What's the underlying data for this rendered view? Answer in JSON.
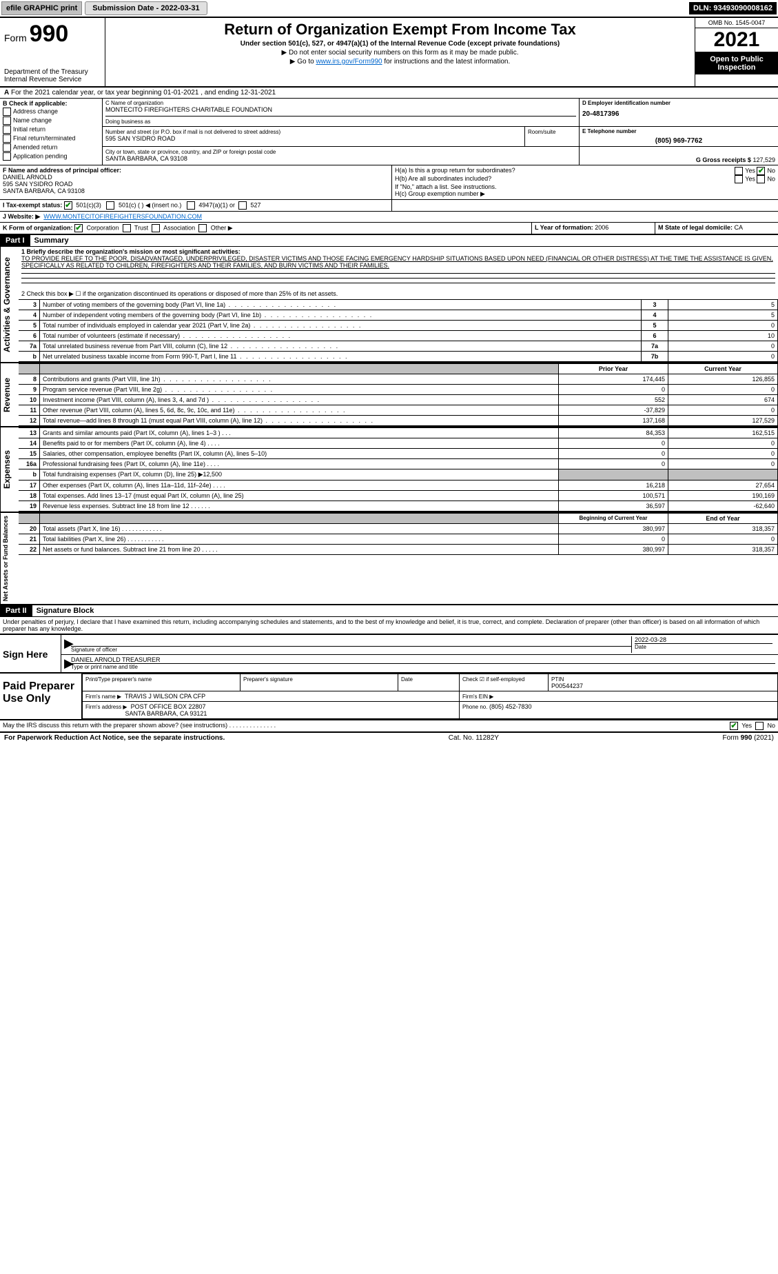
{
  "topbar": {
    "efile": "efile GRAPHIC print",
    "submission_label": "Submission Date - 2022-03-31",
    "dln": "DLN: 93493090008162"
  },
  "header": {
    "form_label": "Form",
    "form_no": "990",
    "dept": "Department of the Treasury",
    "irs": "Internal Revenue Service",
    "title": "Return of Organization Exempt From Income Tax",
    "sub1": "Under section 501(c), 527, or 4947(a)(1) of the Internal Revenue Code (except private foundations)",
    "note1": "▶ Do not enter social security numbers on this form as it may be made public.",
    "note2_pre": "▶ Go to ",
    "note2_link": "www.irs.gov/Form990",
    "note2_post": " for instructions and the latest information.",
    "omb": "OMB No. 1545-0047",
    "year": "2021",
    "open": "Open to Public Inspection"
  },
  "line_a": "For the 2021 calendar year, or tax year beginning 01-01-2021     , and ending 12-31-2021",
  "block_b": {
    "title": "B Check if applicable:",
    "opts": [
      "Address change",
      "Name change",
      "Initial return",
      "Final return/terminated",
      "Amended return",
      "Application pending"
    ]
  },
  "block_c": {
    "name_lbl": "C Name of organization",
    "name": "MONTECITO FIREFIGHTERS CHARITABLE FOUNDATION",
    "dba_lbl": "Doing business as",
    "street_lbl": "Number and street (or P.O. box if mail is not delivered to street address)",
    "room_lbl": "Room/suite",
    "street": "595 SAN YSIDRO ROAD",
    "city_lbl": "City or town, state or province, country, and ZIP or foreign postal code",
    "city": "SANTA BARBARA, CA  93108"
  },
  "block_d": {
    "lbl": "D Employer identification number",
    "val": "20-4817396"
  },
  "block_e": {
    "lbl": "E Telephone number",
    "val": "(805) 969-7762"
  },
  "block_g": {
    "lbl": "G Gross receipts $",
    "val": "127,529"
  },
  "block_f": {
    "lbl": "F  Name and address of principal officer:",
    "name": "DANIEL ARNOLD",
    "street": "595 SAN YSIDRO ROAD",
    "city": "SANTA BARBARA, CA  93108"
  },
  "block_h": {
    "ha": "H(a)  Is this a group return for subordinates?",
    "hb": "H(b)  Are all subordinates included?",
    "hb_note": "If \"No,\" attach a list. See instructions.",
    "hc": "H(c)  Group exemption number ▶",
    "yes": "Yes",
    "no": "No"
  },
  "block_i": {
    "lbl": "I   Tax-exempt status:",
    "o1": "501(c)(3)",
    "o2": "501(c) (   ) ◀ (insert no.)",
    "o3": "4947(a)(1) or",
    "o4": "527"
  },
  "block_j": {
    "lbl": "J   Website: ▶",
    "val": "WWW.MONTECITOFIREFIGHTERSFOUNDATION.COM"
  },
  "block_k": {
    "lbl": "K Form of organization:",
    "o1": "Corporation",
    "o2": "Trust",
    "o3": "Association",
    "o4": "Other ▶"
  },
  "block_l": {
    "lbl": "L Year of formation:",
    "val": "2006"
  },
  "block_m": {
    "lbl": "M State of legal domicile:",
    "val": "CA"
  },
  "part1": {
    "hdr": "Part I",
    "title": "Summary"
  },
  "summary": {
    "line1_lbl": "1  Briefly describe the organization's mission or most significant activities:",
    "line1_txt": "TO PROVIDE RELIEF TO THE POOR, DISADVANTAGED, UNDERPRIVILEGED, DISASTER VICTIMS AND THOSE FACING EMERGENCY HARDSHIP SITUATIONS BASED UPON NEED (FINANCIAL OR OTHER DISTRESS) AT THE TIME THE ASSISTANCE IS GIVEN, SPECIFICALLY AS RELATED TO CHILDREN, FIREFIGHTERS AND THEIR FAMILIES, AND BURN VICTIMS AND THEIR FAMILIES.",
    "line2": "2   Check this box ▶ ☐ if the organization discontinued its operations or disposed of more than 25% of its net assets.",
    "rows_ag": [
      {
        "n": "3",
        "t": "Number of voting members of the governing body (Part VI, line 1a)",
        "box": "3",
        "v": "5"
      },
      {
        "n": "4",
        "t": "Number of independent voting members of the governing body (Part VI, line 1b)",
        "box": "4",
        "v": "5"
      },
      {
        "n": "5",
        "t": "Total number of individuals employed in calendar year 2021 (Part V, line 2a)",
        "box": "5",
        "v": "0"
      },
      {
        "n": "6",
        "t": "Total number of volunteers (estimate if necessary)",
        "box": "6",
        "v": "10"
      },
      {
        "n": "7a",
        "t": "Total unrelated business revenue from Part VIII, column (C), line 12",
        "box": "7a",
        "v": "0"
      },
      {
        "n": "b",
        "t": "Net unrelated business taxable income from Form 990-T, Part I, line 11",
        "box": "7b",
        "v": "0"
      }
    ],
    "col_prior": "Prior Year",
    "col_current": "Current Year",
    "revenue": [
      {
        "n": "8",
        "t": "Contributions and grants (Part VIII, line 1h)",
        "p": "174,445",
        "c": "126,855"
      },
      {
        "n": "9",
        "t": "Program service revenue (Part VIII, line 2g)",
        "p": "0",
        "c": "0"
      },
      {
        "n": "10",
        "t": "Investment income (Part VIII, column (A), lines 3, 4, and 7d )",
        "p": "552",
        "c": "674"
      },
      {
        "n": "11",
        "t": "Other revenue (Part VIII, column (A), lines 5, 6d, 8c, 9c, 10c, and 11e)",
        "p": "-37,829",
        "c": "0"
      },
      {
        "n": "12",
        "t": "Total revenue—add lines 8 through 11 (must equal Part VIII, column (A), line 12)",
        "p": "137,168",
        "c": "127,529"
      }
    ],
    "expenses": [
      {
        "n": "13",
        "t": "Grants and similar amounts paid (Part IX, column (A), lines 1–3 )  .   .   .",
        "p": "84,353",
        "c": "162,515"
      },
      {
        "n": "14",
        "t": "Benefits paid to or for members (Part IX, column (A), line 4)  .   .   .   .",
        "p": "0",
        "c": "0"
      },
      {
        "n": "15",
        "t": "Salaries, other compensation, employee benefits (Part IX, column (A), lines 5–10)",
        "p": "0",
        "c": "0"
      },
      {
        "n": "16a",
        "t": "Professional fundraising fees (Part IX, column (A), line 11e)  .   .   .   .",
        "p": "0",
        "c": "0"
      },
      {
        "n": "b",
        "t": "Total fundraising expenses (Part IX, column (D), line 25) ▶12,500",
        "p": "",
        "c": "",
        "shade": true
      },
      {
        "n": "17",
        "t": "Other expenses (Part IX, column (A), lines 11a–11d, 11f–24e)  .   .   .   .",
        "p": "16,218",
        "c": "27,654"
      },
      {
        "n": "18",
        "t": "Total expenses. Add lines 13–17 (must equal Part IX, column (A), line 25)",
        "p": "100,571",
        "c": "190,169"
      },
      {
        "n": "19",
        "t": "Revenue less expenses. Subtract line 18 from line 12  .   .   .   .   .   .",
        "p": "36,597",
        "c": "-62,640"
      }
    ],
    "col_begin": "Beginning of Current Year",
    "col_end": "End of Year",
    "netassets": [
      {
        "n": "20",
        "t": "Total assets (Part X, line 16)  .   .   .   .   .   .   .   .   .   .   .   .",
        "p": "380,997",
        "c": "318,357"
      },
      {
        "n": "21",
        "t": "Total liabilities (Part X, line 26)  .   .   .   .   .   .   .   .   .   .   .",
        "p": "0",
        "c": "0"
      },
      {
        "n": "22",
        "t": "Net assets or fund balances. Subtract line 21 from line 20  .   .   .   .   .",
        "p": "380,997",
        "c": "318,357"
      }
    ],
    "vlabels": {
      "ag": "Activities & Governance",
      "rev": "Revenue",
      "exp": "Expenses",
      "na": "Net Assets or Fund Balances"
    }
  },
  "part2": {
    "hdr": "Part II",
    "title": "Signature Block"
  },
  "sigblock": {
    "penalty": "Under penalties of perjury, I declare that I have examined this return, including accompanying schedules and statements, and to the best of my knowledge and belief, it is true, correct, and complete. Declaration of preparer (other than officer) is based on all information of which preparer has any knowledge.",
    "sign_here": "Sign Here",
    "sig_officer": "Signature of officer",
    "date_lbl": "Date",
    "date_val": "2022-03-28",
    "typed": "DANIEL ARNOLD  TREASURER",
    "typed_lbl": "Type or print name and title",
    "paid": "Paid Preparer Use Only",
    "pp_name_lbl": "Print/Type preparer's name",
    "pp_sig_lbl": "Preparer's signature",
    "pp_date_lbl": "Date",
    "pp_check_lbl": "Check ☑ if self-employed",
    "pp_ptin_lbl": "PTIN",
    "pp_ptin": "P00544237",
    "firm_name_lbl": "Firm's name    ▶",
    "firm_name": "TRAVIS J WILSON CPA CFP",
    "firm_ein_lbl": "Firm's EIN ▶",
    "firm_addr_lbl": "Firm's address ▶",
    "firm_addr1": "POST OFFICE BOX 22807",
    "firm_addr2": "SANTA BARBARA, CA  93121",
    "firm_phone_lbl": "Phone no.",
    "firm_phone": "(805) 452-7830",
    "discuss": "May the IRS discuss this return with the preparer shown above? (see instructions)  .   .   .   .   .   .   .   .   .   .   .   .   .   .",
    "yes": "Yes",
    "no": "No"
  },
  "footer": {
    "left": "For Paperwork Reduction Act Notice, see the separate instructions.",
    "mid": "Cat. No. 11282Y",
    "right": "Form 990 (2021)"
  }
}
